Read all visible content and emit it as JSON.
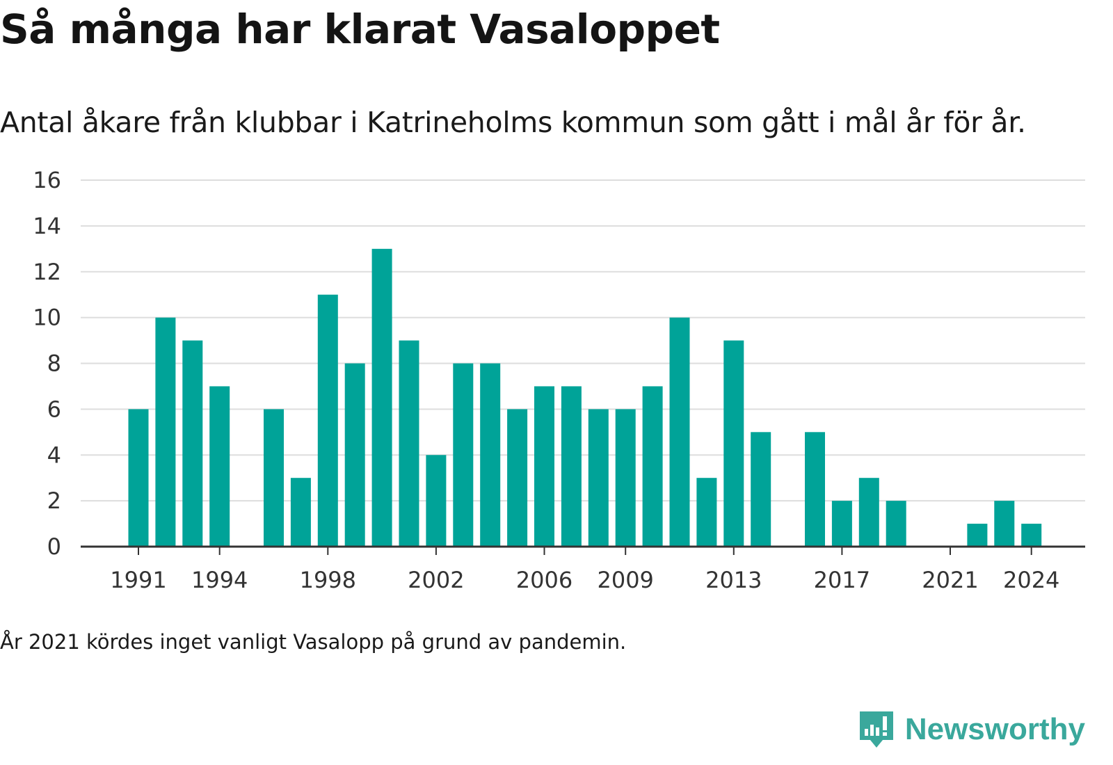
{
  "title": "Så många har klarat Vasaloppet",
  "subtitle": "Antal åkare från klubbar i Katrineholms kommun som gått i mål år för år.",
  "note": "År 2021 kördes inget vanligt Vasalopp på grund av pandemin.",
  "brand": {
    "name": "Newsworthy",
    "color": "#3aa89c",
    "icon": "newsworthy-logo-icon"
  },
  "colors": {
    "bar": "#00a398",
    "grid": "#dddddd",
    "axis": "#333333"
  },
  "chart_data": {
    "type": "bar",
    "title": "Så många har klarat Vasaloppet",
    "subtitle": "Antal åkare från klubbar i Katrineholms kommun som gått i mål år för år.",
    "x": [
      1991,
      1992,
      1993,
      1994,
      1995,
      1996,
      1997,
      1998,
      1999,
      2000,
      2001,
      2002,
      2003,
      2004,
      2005,
      2006,
      2007,
      2008,
      2009,
      2010,
      2011,
      2012,
      2013,
      2014,
      2015,
      2016,
      2017,
      2018,
      2019,
      2020,
      2021,
      2022,
      2023,
      2024
    ],
    "values": [
      6,
      10,
      9,
      7,
      0,
      6,
      3,
      11,
      8,
      13,
      9,
      4,
      8,
      8,
      6,
      7,
      7,
      6,
      6,
      7,
      10,
      3,
      9,
      5,
      0,
      5,
      2,
      3,
      2,
      0,
      0,
      1,
      2,
      1
    ],
    "x_ticks": [
      1991,
      1994,
      1998,
      2002,
      2006,
      2009,
      2013,
      2017,
      2021,
      2024
    ],
    "y_ticks": [
      0,
      2,
      4,
      6,
      8,
      10,
      12,
      14,
      16
    ],
    "ylim": [
      0,
      16
    ],
    "xlabel": "",
    "ylabel": "",
    "grid": true,
    "legend": "none"
  }
}
